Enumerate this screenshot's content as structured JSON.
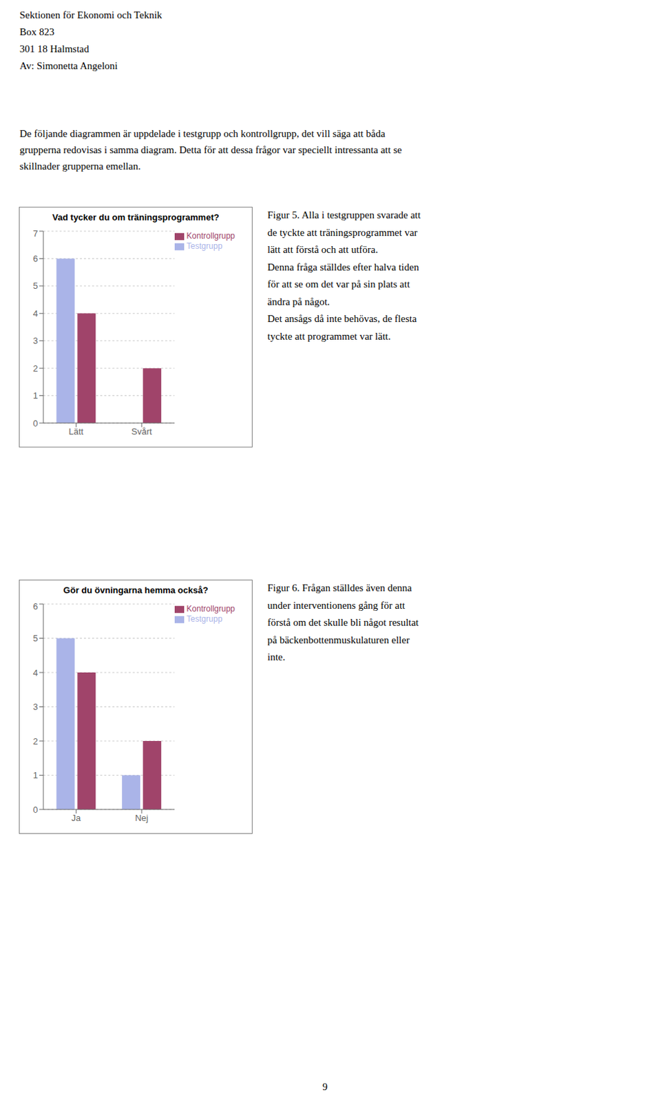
{
  "annotations": [
    "Sektionen för Ekonomi och Teknik\nBox 823\n301 18 Halmstad\nAv: Simonetta Angeloni",
    "De följande diagrammen är uppdelade i testgrupp och kontrollgrupp, det vill säga att båda\ngrupperna redovisas i samma diagram. Detta för att dessa frågor var speciellt intressanta att se\nskillnader grupperna emellan.",
    "9"
  ],
  "chart_data": [
    {
      "type": "bar",
      "title": "Vad tycker du om träningsprogrammet?",
      "categories": [
        "Lätt",
        "Svårt"
      ],
      "series": [
        {
          "name": "Testgrupp",
          "color": "#aab4e8",
          "values": [
            6,
            0
          ]
        },
        {
          "name": "Kontrollgrupp",
          "color": "#a0446a",
          "values": [
            4,
            2
          ]
        }
      ],
      "ylim": [
        0,
        7
      ],
      "yticks": [
        0,
        1,
        2,
        3,
        4,
        5,
        6,
        7
      ],
      "grid": true,
      "legend": "upper right",
      "annotations": [
        "Figur 5. Alla i testgruppen svarade att\nde tyckte att träningsprogrammet var\nlätt att förstå och att utföra.\nDenna fråga ställdes efter halva tiden\nför att se om det var på sin plats att\nändra på något.\nDet ansågs då inte behövas, de flesta\ntyckte att programmet var lätt."
      ]
    },
    {
      "type": "bar",
      "title": "Gör du övningarna hemma också?",
      "categories": [
        "Ja",
        "Nej"
      ],
      "series": [
        {
          "name": "Testgrupp",
          "color": "#aab4e8",
          "values": [
            5,
            1
          ]
        },
        {
          "name": "Kontrollgrupp",
          "color": "#a0446a",
          "values": [
            4,
            2
          ]
        }
      ],
      "ylim": [
        0,
        6
      ],
      "yticks": [
        0,
        1,
        2,
        3,
        4,
        5,
        6
      ],
      "grid": true,
      "legend": "upper right",
      "annotations": [
        "Figur 6. Frågan ställdes även denna\nunder interventionens gång för att\nförstå om det skulle bli något resultat\npå bäckenbottenmuskulaturen eller\ninte."
      ]
    }
  ]
}
